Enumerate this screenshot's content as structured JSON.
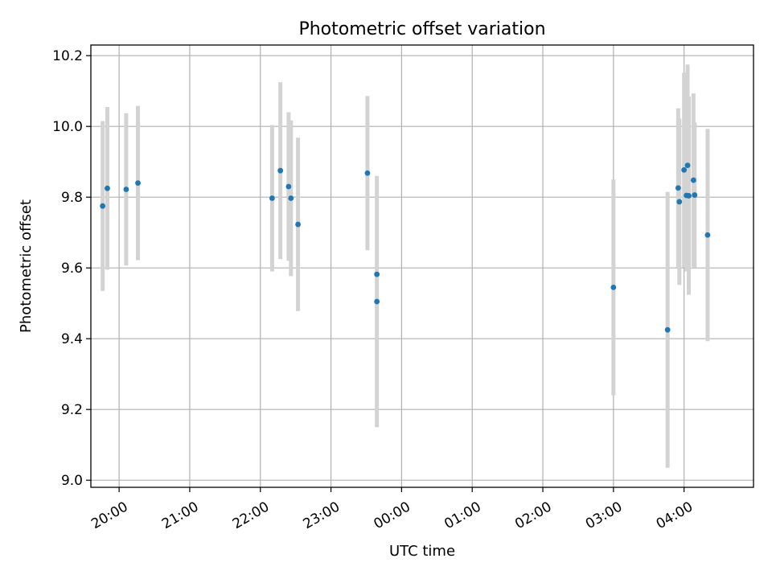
{
  "chart_data": {
    "type": "scatter",
    "title": "Photometric offset variation",
    "xlabel": "UTC time",
    "ylabel": "Photometric offset",
    "x_tick_labels": [
      "20:00",
      "21:00",
      "22:00",
      "23:00",
      "00:00",
      "01:00",
      "02:00",
      "03:00",
      "04:00"
    ],
    "y_ticks": [
      9.0,
      9.2,
      9.4,
      9.6,
      9.8,
      10.0,
      10.2
    ],
    "y_tick_labels": [
      "9.0",
      "9.2",
      "9.4",
      "9.6",
      "9.8",
      "10.0",
      "10.2"
    ],
    "ylim": [
      8.98,
      10.23
    ],
    "xlim": [
      "19:36",
      "28:59"
    ],
    "grid": true,
    "colors": {
      "points": "#1f77b4",
      "errorbars": "#d3d3d3",
      "grid": "#b0b0b0"
    },
    "points": [
      {
        "time": "19:46",
        "y": 9.775,
        "err": 0.24
      },
      {
        "time": "19:50",
        "y": 9.825,
        "err": 0.23
      },
      {
        "time": "20:06",
        "y": 9.822,
        "err": 0.215
      },
      {
        "time": "20:16",
        "y": 9.84,
        "err": 0.218
      },
      {
        "time": "22:10",
        "y": 9.797,
        "err": 0.207
      },
      {
        "time": "22:17",
        "y": 9.875,
        "err": 0.25
      },
      {
        "time": "22:24",
        "y": 9.83,
        "err": 0.21
      },
      {
        "time": "22:26",
        "y": 9.797,
        "err": 0.22
      },
      {
        "time": "22:32",
        "y": 9.723,
        "err": 0.245
      },
      {
        "time": "23:31",
        "y": 9.868,
        "err": 0.218
      },
      {
        "time": "23:39",
        "y": 9.582,
        "err": 0.0
      },
      {
        "time": "23:39",
        "y": 9.505,
        "err": 0.355
      },
      {
        "time": "03:00",
        "y": 9.545,
        "err": 0.305
      },
      {
        "time": "03:46",
        "y": 9.425,
        "err": 0.39
      },
      {
        "time": "03:55",
        "y": 9.826,
        "err": 0.225
      },
      {
        "time": "03:56",
        "y": 9.787,
        "err": 0.235
      },
      {
        "time": "04:00",
        "y": 9.877,
        "err": 0.275
      },
      {
        "time": "04:02",
        "y": 9.805,
        "err": 0.215
      },
      {
        "time": "04:03",
        "y": 9.89,
        "err": 0.285
      },
      {
        "time": "04:04",
        "y": 9.804,
        "err": 0.28
      },
      {
        "time": "04:08",
        "y": 9.848,
        "err": 0.245
      },
      {
        "time": "04:09",
        "y": 9.806,
        "err": 0.205
      },
      {
        "time": "04:20",
        "y": 9.693,
        "err": 0.3
      }
    ]
  }
}
